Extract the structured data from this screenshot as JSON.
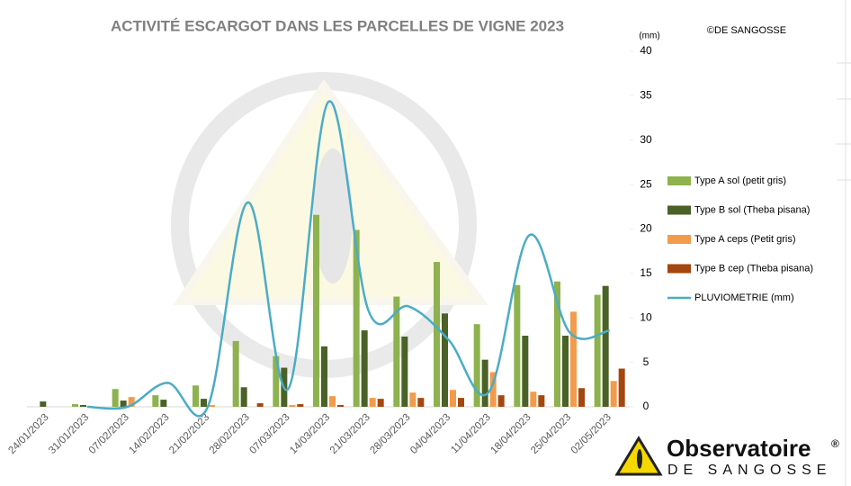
{
  "chart_data": {
    "type": "bar_line",
    "title": "ACTIVITÉ ESCARGOT DANS LES PARCELLES DE VIGNE 2023",
    "copyright": "©DE SANGOSSE",
    "y_label": "(mm)",
    "logo": {
      "name": "Observatoire",
      "mark": "®",
      "sub": "DE SANGOSSE"
    },
    "categories": [
      "24/01/2023",
      "31/01/2023",
      "07/02/2023",
      "14/02/2023",
      "21/02/2023",
      "28/02/2023",
      "07/03/2023",
      "14/03/2023",
      "21/03/2023",
      "28/03/2023",
      "04/04/2023",
      "11/04/2023",
      "18/04/2023",
      "25/04/2023",
      "02/05/2023"
    ],
    "series": [
      {
        "name": "Type A sol (petit gris)",
        "type": "bar",
        "color": "#8db24e",
        "values": [
          0,
          0.3,
          2,
          1.3,
          2.4,
          7.4,
          5.7,
          21.6,
          19.9,
          12.4,
          16.3,
          9.3,
          13.7,
          14.1,
          12.6
        ]
      },
      {
        "name": "Type B sol (Theba pisana)",
        "type": "bar",
        "color": "#4a6127",
        "values": [
          0.6,
          0.2,
          0.7,
          0.8,
          0.9,
          2.2,
          4.4,
          6.8,
          8.6,
          7.9,
          10.5,
          5.3,
          8,
          8,
          13.6
        ]
      },
      {
        "name": "Type A ceps (Petit gris)",
        "type": "bar",
        "color": "#f39b4c",
        "values": [
          0,
          0,
          1.1,
          0,
          0.2,
          0,
          0.2,
          1.2,
          1,
          1.6,
          1.9,
          3.9,
          1.7,
          10.7,
          2.9
        ]
      },
      {
        "name": "Type B cep (Theba pisana)",
        "type": "bar",
        "color": "#a3470f",
        "values": [
          0,
          0,
          0,
          0,
          0,
          0.4,
          0.3,
          0.2,
          0.9,
          1,
          1,
          1.3,
          1.3,
          2.1,
          4.3
        ]
      },
      {
        "name": "PLUVIOMETRIE (mm)",
        "type": "line",
        "color": "#4bacc6",
        "values": [
          null,
          0,
          0,
          2.7,
          0,
          23,
          2,
          34.3,
          10.8,
          11.3,
          7.5,
          1.7,
          19.3,
          8.4,
          8.6
        ]
      }
    ],
    "ylim": [
      0,
      40
    ],
    "yticks": [
      0,
      5,
      10,
      15,
      20,
      25,
      30,
      35,
      40
    ],
    "grid": false
  }
}
